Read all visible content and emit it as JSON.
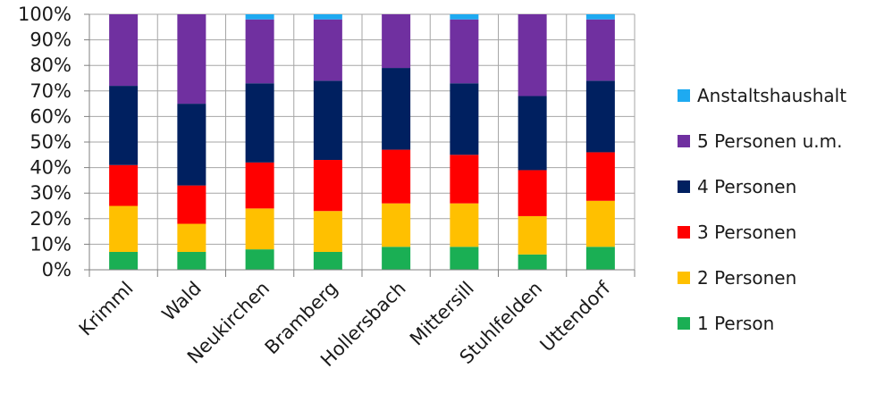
{
  "chart_data": {
    "type": "bar",
    "stacked": true,
    "categories": [
      "Krimml",
      "Wald",
      "Neukirchen",
      "Bramberg",
      "Hollersbach",
      "Mittersill",
      "Stuhlfelden",
      "Uttendorf"
    ],
    "series": [
      {
        "name": "1 Person",
        "color": "#1aaf54",
        "values": [
          7,
          7,
          8,
          7,
          9,
          9,
          6,
          9
        ]
      },
      {
        "name": "2 Personen",
        "color": "#ffc000",
        "values": [
          18,
          11,
          16,
          16,
          17,
          17,
          15,
          18
        ]
      },
      {
        "name": "3 Personen",
        "color": "#ff0000",
        "values": [
          16,
          15,
          18,
          20,
          21,
          19,
          18,
          19
        ]
      },
      {
        "name": "4 Personen",
        "color": "#002060",
        "values": [
          31,
          32,
          31,
          31,
          32,
          28,
          29,
          28
        ]
      },
      {
        "name": "5 Personen u.m.",
        "color": "#7030a0",
        "values": [
          28,
          35,
          25,
          24,
          21,
          25,
          32,
          24
        ]
      },
      {
        "name": "Anstaltshaushalt",
        "color": "#1eaaf1",
        "values": [
          0,
          0,
          2,
          2,
          0,
          2,
          0,
          2
        ]
      }
    ],
    "legend_order": [
      "Anstaltshaushalt",
      "5 Personen u.m.",
      "4 Personen",
      "3 Personen",
      "2 Personen",
      "1 Person"
    ],
    "y_ticks": [
      "0%",
      "10%",
      "20%",
      "30%",
      "40%",
      "50%",
      "60%",
      "70%",
      "80%",
      "90%",
      "100%"
    ],
    "ylim": [
      0,
      100
    ],
    "grid": true,
    "legend_position": "right"
  }
}
